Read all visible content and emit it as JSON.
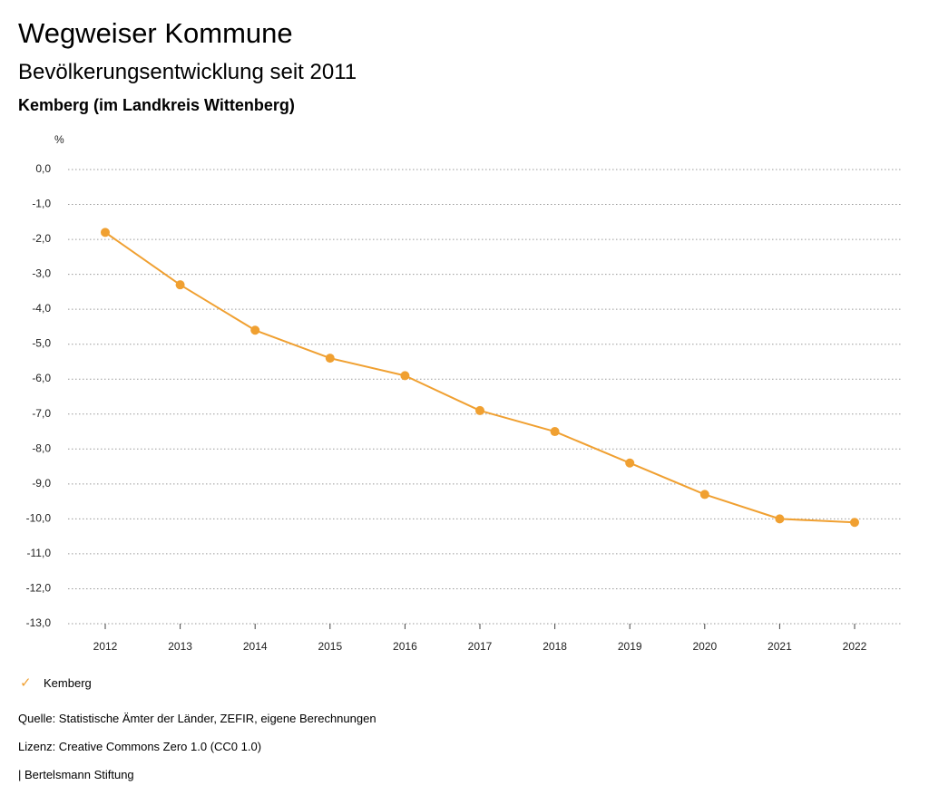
{
  "header": {
    "title": "Wegweiser Kommune",
    "subtitle": "Bevölkerungsentwicklung seit 2011",
    "region": "Kemberg (im Landkreis Wittenberg)"
  },
  "chart_data": {
    "type": "line",
    "ylabel": "%",
    "xlabel": "",
    "x": [
      "2012",
      "2013",
      "2014",
      "2015",
      "2016",
      "2017",
      "2018",
      "2019",
      "2020",
      "2021",
      "2022"
    ],
    "series": [
      {
        "name": "Kemberg",
        "color": "#f0a031",
        "values": [
          -1.8,
          -3.3,
          -4.6,
          -5.4,
          -5.9,
          -6.9,
          -7.5,
          -8.4,
          -9.3,
          -10.0,
          -10.1
        ]
      }
    ],
    "ylim": [
      -13,
      0
    ],
    "yticks": [
      "0,0",
      "-1,0",
      "-2,0",
      "-3,0",
      "-4,0",
      "-5,0",
      "-6,0",
      "-7,0",
      "-8,0",
      "-9,0",
      "-10,0",
      "-11,0",
      "-12,0",
      "-13,0"
    ],
    "grid": true,
    "legend_position": "bottom-left"
  },
  "legend": {
    "label": "Kemberg",
    "icon": "check-icon"
  },
  "footer": {
    "source": "Quelle: Statistische Ämter der Länder, ZEFIR, eigene Berechnungen",
    "license": "Lizenz: Creative Commons Zero 1.0 (CC0 1.0)",
    "publisher": "| Bertelsmann Stiftung"
  }
}
